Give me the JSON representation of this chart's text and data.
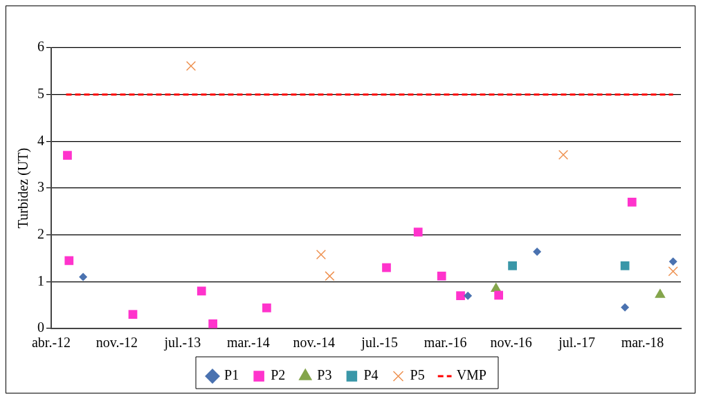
{
  "chart_data": {
    "type": "scatter",
    "ylabel": "Turbidez (UT)",
    "xlim": [
      "2012-04-01",
      "2018-08-17"
    ],
    "xticks": [
      {
        "value": "2012-04-01",
        "label": "abr.-12"
      },
      {
        "value": "2012-11-30",
        "label": "nov.-12"
      },
      {
        "value": "2013-07-31",
        "label": "jul.-13"
      },
      {
        "value": "2014-03-31",
        "label": "mar.-14"
      },
      {
        "value": "2014-11-29",
        "label": "nov.-14"
      },
      {
        "value": "2015-07-30",
        "label": "jul.-15"
      },
      {
        "value": "2016-03-29",
        "label": "mar.-16"
      },
      {
        "value": "2016-11-27",
        "label": "nov.-16"
      },
      {
        "value": "2017-07-28",
        "label": "jul.-17"
      },
      {
        "value": "2018-03-28",
        "label": "mar.-18"
      }
    ],
    "ylim": [
      0,
      6
    ],
    "yticks": [
      0,
      1,
      2,
      3,
      4,
      5,
      6
    ],
    "grid": "y",
    "legend": "bottom",
    "series": [
      {
        "name": "P1",
        "color": "#4a72b0",
        "marker": "diamond",
        "x": [
          "2012-07-28",
          "2016-06-20",
          "2017-03-03",
          "2018-01-22",
          "2018-07-19"
        ],
        "values": [
          1.1,
          0.7,
          1.64,
          0.45,
          1.43
        ]
      },
      {
        "name": "P2",
        "color": "#ff33cc",
        "marker": "square",
        "x": [
          "2012-05-31",
          "2012-06-06",
          "2013-01-28",
          "2013-10-09",
          "2013-11-20",
          "2014-06-07",
          "2015-08-24",
          "2015-12-19",
          "2016-03-15",
          "2016-05-24",
          "2016-10-12",
          "2018-02-17"
        ],
        "values": [
          3.7,
          1.45,
          0.3,
          0.8,
          0.1,
          0.44,
          1.3,
          2.06,
          1.12,
          0.7,
          0.71,
          2.7
        ]
      },
      {
        "name": "P3",
        "color": "#84a54b",
        "marker": "triangle",
        "x": [
          "2016-10-02",
          "2018-06-01"
        ],
        "values": [
          0.85,
          0.72
        ]
      },
      {
        "name": "P4",
        "color": "#3a97a8",
        "marker": "square",
        "x": [
          "2016-12-02",
          "2018-01-22"
        ],
        "values": [
          1.34,
          1.34
        ]
      },
      {
        "name": "P5",
        "color": "#ee9150",
        "marker": "cross",
        "x": [
          "2013-08-31",
          "2014-12-25",
          "2015-01-26",
          "2017-06-08",
          "2018-07-19"
        ],
        "values": [
          5.61,
          1.58,
          1.12,
          3.71,
          1.22
        ]
      },
      {
        "name": "VMP",
        "type": "line",
        "color": "#ff0000",
        "marker": "none",
        "line_style": "dashed",
        "x": [
          "2012-05-26",
          "2018-07-19"
        ],
        "values": [
          5,
          5
        ]
      }
    ]
  }
}
